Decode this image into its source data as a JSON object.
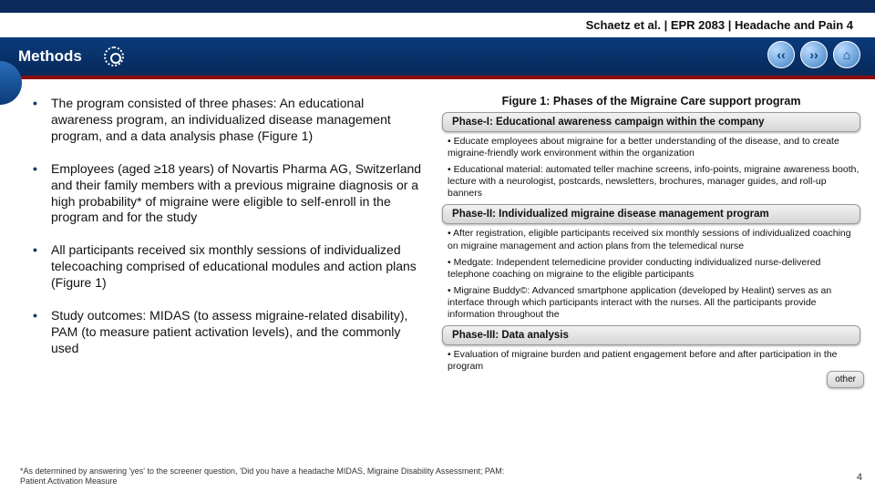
{
  "colors": {
    "header_bg_top": "#0b3a7a",
    "header_bg_bottom": "#062a5a",
    "red_divider": "#8a0b0b",
    "top_strip": "#0b2a5a",
    "bullet_dot": "#163a6c",
    "phase_bg_top": "#f2f2f2",
    "phase_bg_bottom": "#d6d6d6"
  },
  "breadcrumb": "Schaetz et al. | EPR 2083 | Headache and Pain 4",
  "section_title": "Methods",
  "bullets": [
    "The program consisted of three phases: An educational awareness program, an individualized disease management program, and a data analysis phase (Figure 1)",
    "Employees (aged ≥18 years) of Novartis Pharma AG, Switzerland and their family members with a previous migraine diagnosis or a high probability* of  migraine were eligible to self-enroll in the program and for the study",
    "All participants received six monthly sessions of individualized telecoaching comprised of educational modules and action plans (Figure 1)",
    "Study outcomes: MIDAS (to assess migraine-related disability), PAM (to measure patient activation levels), and the commonly used"
  ],
  "figure": {
    "title": "Figure 1: Phases of the Migraine Care support program",
    "phase1_header": "Phase-I: Educational awareness campaign within the company",
    "phase1_items": [
      "Educate employees about migraine for a better understanding of the disease, and to create migraine-friendly work environment within the organization",
      "Educational material: automated teller machine screens, info-points, migraine awareness booth, lecture with a neurologist, postcards, newsletters, brochures, manager guides, and roll-up banners"
    ],
    "phase2_header": "Phase-II: Individualized migraine disease management program",
    "phase2_items": [
      "After registration, eligible participants received six monthly sessions of individualized coaching on migraine management and action plans from the telemedical nurse",
      "Medgate: Independent telemedicine provider conducting individualized nurse-delivered telephone coaching on migraine to the eligible participants",
      "Migraine Buddy©: Advanced smartphone application (developed by Healint) serves as an interface through which participants interact with the nurses. All the participants provide information throughout the"
    ],
    "phase3_header": "Phase-III: Data analysis",
    "phase3_items": [
      "Evaluation of migraine burden and patient engagement before and after participation in the program"
    ],
    "float_box": "other"
  },
  "footnote": "*As determined by answering 'yes' to the screener question, 'Did you have a headache MIDAS, Migraine Disability Assessment; PAM: Patient Activation Measure",
  "page_number": "4",
  "nav": {
    "back": "‹‹",
    "forward": "››",
    "home": "⌂"
  }
}
